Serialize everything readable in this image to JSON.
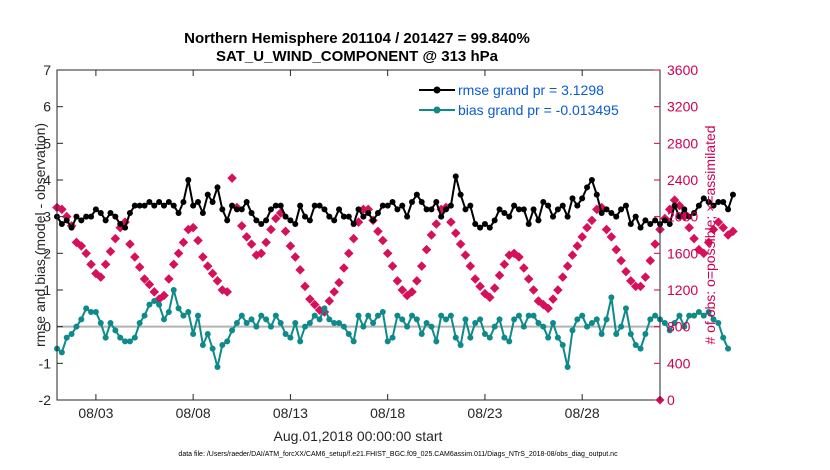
{
  "chart_data": {
    "type": "line",
    "title_line1": "Northern Hemisphere 201104 / 201427 = 99.840%",
    "title_line2": "SAT_U_WIND_COMPONENT @ 313 hPa",
    "xlabel": "Aug.01,2018 00:00:00 start",
    "ylabel": "rmse and bias (model - observation)",
    "y2label": "# of obs: o=possible; ×=assimilated",
    "footnote": "data file: /Users/raeder/DAI/ATM_forcXX/CAM6_setup/f.e21.FHIST_BGC.f09_025.CAM6assim.011/Diags_NTrS_2018-08/obs_diag_output.nc",
    "xlim": [
      1.0,
      32.0
    ],
    "ylim": [
      -2,
      7
    ],
    "y2lim": [
      0,
      3600
    ],
    "xticks": [
      {
        "value": 3,
        "label": "08/03"
      },
      {
        "value": 8,
        "label": "08/08"
      },
      {
        "value": 13,
        "label": "08/13"
      },
      {
        "value": 18,
        "label": "08/18"
      },
      {
        "value": 23,
        "label": "08/23"
      },
      {
        "value": 28,
        "label": "08/28"
      }
    ],
    "yticks": [
      {
        "value": -2,
        "label": "-2"
      },
      {
        "value": -1,
        "label": "-1"
      },
      {
        "value": 0,
        "label": "0"
      },
      {
        "value": 1,
        "label": "1"
      },
      {
        "value": 2,
        "label": "2"
      },
      {
        "value": 3,
        "label": "3"
      },
      {
        "value": 4,
        "label": "4"
      },
      {
        "value": 5,
        "label": "5"
      },
      {
        "value": 6,
        "label": "6"
      },
      {
        "value": 7,
        "label": "7"
      }
    ],
    "y2ticks": [
      {
        "value": 0,
        "label": "0"
      },
      {
        "value": 400,
        "label": "400"
      },
      {
        "value": 800,
        "label": "800"
      },
      {
        "value": 1200,
        "label": "1200"
      },
      {
        "value": 1600,
        "label": "1600"
      },
      {
        "value": 2000,
        "label": "2000"
      },
      {
        "value": 2400,
        "label": "2400"
      },
      {
        "value": 2800,
        "label": "2800"
      },
      {
        "value": 3200,
        "label": "3200"
      },
      {
        "value": 3600,
        "label": "3600"
      }
    ],
    "zero_line": 0,
    "series": [
      {
        "name": "rmse",
        "legend": "rmse grand pr = 3.1298",
        "color": "#000000",
        "x_start": 1.0,
        "dx": 0.25,
        "values": [
          3.0,
          2.8,
          2.9,
          2.7,
          3.0,
          2.9,
          3.0,
          3.0,
          3.2,
          3.1,
          2.9,
          3.1,
          3.0,
          2.8,
          2.7,
          3.1,
          3.3,
          3.3,
          3.3,
          3.4,
          3.3,
          3.4,
          3.3,
          3.4,
          3.3,
          3.1,
          3.4,
          4.0,
          3.3,
          3.4,
          3.1,
          3.6,
          3.4,
          3.8,
          3.2,
          2.9,
          3.3,
          3.2,
          3.2,
          3.4,
          3.1,
          2.9,
          2.8,
          2.9,
          3.2,
          3.3,
          3.3,
          3.0,
          2.9,
          2.8,
          3.3,
          3.0,
          2.9,
          3.3,
          3.3,
          3.2,
          3.0,
          2.9,
          3.2,
          3.0,
          3.0,
          2.8,
          3.2,
          3.0,
          3.1,
          2.9,
          3.1,
          3.3,
          3.3,
          3.4,
          3.2,
          3.3,
          3.0,
          3.4,
          3.6,
          3.4,
          3.2,
          3.2,
          3.4,
          3.0,
          3.2,
          3.3,
          4.1,
          3.6,
          3.2,
          3.3,
          2.8,
          2.7,
          2.8,
          2.7,
          2.9,
          3.2,
          3.1,
          3.0,
          3.3,
          3.2,
          3.2,
          2.8,
          3.2,
          2.9,
          3.4,
          3.3,
          3.0,
          3.2,
          3.3,
          3.0,
          3.5,
          3.3,
          3.5,
          3.8,
          4.0,
          3.6,
          3.1,
          3.2,
          3.1,
          3.0,
          3.2,
          3.3,
          2.8,
          3.0,
          2.7,
          2.9,
          2.8,
          2.9,
          2.8,
          2.9,
          2.8,
          3.3,
          3.0,
          3.2,
          3.0,
          3.1,
          3.3,
          3.5,
          3.4,
          3.3,
          3.4,
          3.4,
          3.2,
          3.6
        ]
      },
      {
        "name": "bias",
        "legend": "bias grand pr = -0.013495",
        "color": "#0f8a8a",
        "x_start": 1.0,
        "dx": 0.25,
        "values": [
          -0.6,
          -0.7,
          -0.3,
          -0.2,
          0.0,
          0.2,
          0.5,
          0.4,
          0.4,
          0.1,
          -0.3,
          0.1,
          -0.1,
          -0.3,
          -0.4,
          -0.4,
          -0.3,
          0.1,
          0.3,
          0.6,
          0.7,
          0.6,
          0.2,
          0.4,
          1.0,
          0.5,
          0.3,
          0.4,
          -0.2,
          0.3,
          -0.5,
          -0.2,
          -0.6,
          -1.1,
          -0.5,
          -0.4,
          -0.1,
          0.1,
          0.3,
          0.1,
          0.2,
          0.0,
          0.3,
          0.2,
          0.0,
          0.3,
          0.1,
          -0.2,
          -0.3,
          0.1,
          -0.4,
          0.0,
          0.1,
          0.3,
          0.2,
          0.5,
          0.2,
          0.1,
          0.1,
          0.0,
          -0.2,
          -0.4,
          0.3,
          0.0,
          0.3,
          0.1,
          0.3,
          0.4,
          -0.4,
          -0.3,
          0.3,
          0.2,
          0.0,
          0.3,
          0.2,
          -0.2,
          0.1,
          0.0,
          -0.4,
          0.3,
          0.2,
          0.3,
          -0.3,
          -0.5,
          0.2,
          -0.3,
          0.1,
          0.2,
          -0.2,
          -0.3,
          0.0,
          0.2,
          -0.3,
          -0.4,
          0.2,
          0.3,
          0.0,
          0.3,
          0.3,
          0.1,
          0.0,
          -0.3,
          0.1,
          -0.3,
          -0.5,
          -1.1,
          -0.1,
          0.2,
          0.3,
          0.0,
          0.1,
          0.2,
          -0.2,
          0.2,
          0.8,
          -0.2,
          0.0,
          0.5,
          -0.2,
          -0.5,
          -0.6,
          -0.2,
          0.2,
          0.3,
          0.2,
          0.1,
          -0.1,
          0.1,
          0.3,
          0.0,
          0.3,
          0.3,
          0.4,
          0.3,
          0.4,
          0.2,
          0.1,
          -0.3,
          -0.6
        ]
      }
    ],
    "obs_possible": {
      "name": "# obs possible",
      "color": "#d6105a",
      "x_start": 1.0,
      "dx": 0.25,
      "values": [
        2100,
        2080,
        2000,
        1900,
        1720,
        1680,
        1600,
        1480,
        1380,
        1340,
        1480,
        1620,
        1760,
        1880,
        1940,
        1700,
        1560,
        1450,
        1320,
        1260,
        1180,
        1100,
        1140,
        1320,
        1480,
        1600,
        1720,
        1860,
        1880,
        1740,
        1560,
        1460,
        1380,
        1300,
        1200,
        1180,
        2420,
        2100,
        1900,
        1780,
        1700,
        1580,
        1600,
        1720,
        1860,
        1980,
        2040,
        1840,
        1680,
        1560,
        1420,
        1240,
        1100,
        1040,
        980,
        960,
        1080,
        1180,
        1280,
        1440,
        1600,
        1760,
        1940,
        2080,
        2080,
        1960,
        1840,
        1740,
        1600,
        1460,
        1300,
        1200,
        1140,
        1180,
        1300,
        1460,
        1640,
        1800,
        1920,
        2080,
        2100,
        1940,
        1820,
        1700,
        1580,
        1460,
        1320,
        1240,
        1160,
        1120,
        1220,
        1360,
        1480,
        1580,
        1600,
        1560,
        1440,
        1320,
        1200,
        1080,
        1040,
        1000,
        1100,
        1200,
        1340,
        1460,
        1580,
        1680,
        1780,
        1880,
        1960,
        2080,
        2100,
        1860,
        1780,
        1640,
        1520,
        1400,
        1300,
        1240,
        1240,
        1340,
        1520,
        1700,
        1860,
        1980,
        2080,
        2180,
        2120,
        2000,
        1880,
        1760,
        1640,
        1600,
        1720,
        1860,
        1940,
        1880,
        1800,
        1840
      ]
    }
  }
}
